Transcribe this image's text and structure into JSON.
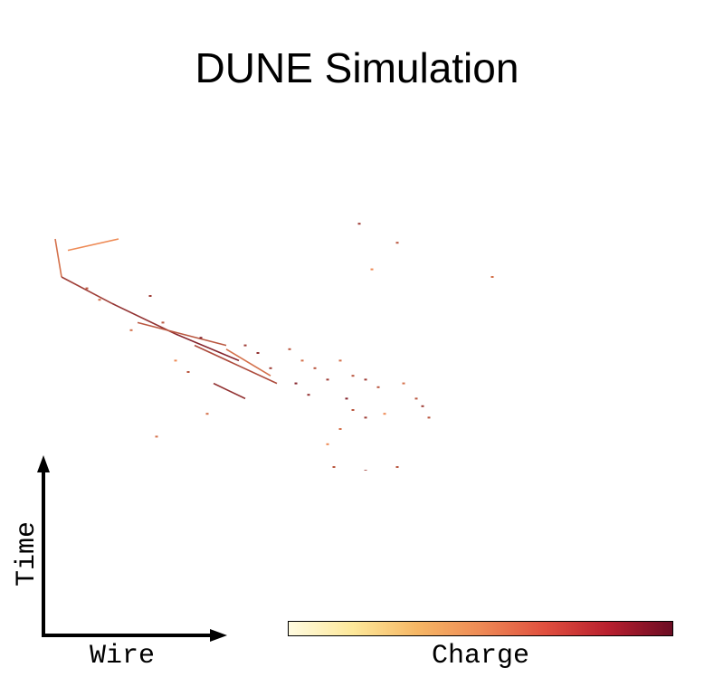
{
  "title": "DUNE Simulation",
  "axis_labels": {
    "x": "Wire",
    "y": "Time",
    "colorbar": "Charge"
  },
  "colormap": {
    "low": "#fffbe0",
    "mid": "#ee8a55",
    "high": "#6b0c23"
  },
  "chart_data": {
    "type": "heatmap",
    "title": "DUNE Simulation",
    "xlabel": "Wire",
    "ylabel": "Time",
    "colorbar_label": "Charge",
    "grid": false,
    "ticks": false,
    "tracks": [
      {
        "from": [
          0.05,
          0.23
        ],
        "to": [
          0.13,
          0.2
        ],
        "charge": 0.5
      },
      {
        "from": [
          0.03,
          0.2
        ],
        "to": [
          0.04,
          0.3
        ],
        "charge": 0.6
      },
      {
        "from": [
          0.04,
          0.3
        ],
        "to": [
          0.12,
          0.37
        ],
        "charge": 0.8
      },
      {
        "from": [
          0.12,
          0.37
        ],
        "to": [
          0.22,
          0.45
        ],
        "charge": 0.85
      },
      {
        "from": [
          0.16,
          0.42
        ],
        "to": [
          0.3,
          0.48
        ],
        "charge": 0.7
      },
      {
        "from": [
          0.22,
          0.45
        ],
        "to": [
          0.32,
          0.52
        ],
        "charge": 0.9
      },
      {
        "from": [
          0.25,
          0.48
        ],
        "to": [
          0.38,
          0.58
        ],
        "charge": 0.75
      },
      {
        "from": [
          0.3,
          0.49
        ],
        "to": [
          0.37,
          0.56
        ],
        "charge": 0.6
      },
      {
        "from": [
          0.28,
          0.58
        ],
        "to": [
          0.33,
          0.62
        ],
        "charge": 0.85
      }
    ],
    "hits": [
      [
        0.51,
        0.16,
        0.8
      ],
      [
        0.57,
        0.21,
        0.7
      ],
      [
        0.72,
        0.3,
        0.6
      ],
      [
        0.53,
        0.28,
        0.5
      ],
      [
        0.08,
        0.33,
        0.7
      ],
      [
        0.1,
        0.36,
        0.6
      ],
      [
        0.18,
        0.35,
        0.8
      ],
      [
        0.2,
        0.42,
        0.7
      ],
      [
        0.26,
        0.46,
        0.9
      ],
      [
        0.33,
        0.48,
        0.8
      ],
      [
        0.35,
        0.5,
        0.85
      ],
      [
        0.37,
        0.54,
        0.8
      ],
      [
        0.4,
        0.49,
        0.7
      ],
      [
        0.42,
        0.52,
        0.6
      ],
      [
        0.44,
        0.54,
        0.7
      ],
      [
        0.46,
        0.57,
        0.8
      ],
      [
        0.41,
        0.58,
        0.9
      ],
      [
        0.43,
        0.61,
        0.85
      ],
      [
        0.48,
        0.52,
        0.6
      ],
      [
        0.5,
        0.56,
        0.7
      ],
      [
        0.52,
        0.57,
        0.8
      ],
      [
        0.54,
        0.59,
        0.7
      ],
      [
        0.58,
        0.58,
        0.6
      ],
      [
        0.49,
        0.62,
        0.9
      ],
      [
        0.5,
        0.65,
        0.7
      ],
      [
        0.52,
        0.67,
        0.8
      ],
      [
        0.48,
        0.7,
        0.6
      ],
      [
        0.6,
        0.62,
        0.7
      ],
      [
        0.61,
        0.64,
        0.8
      ],
      [
        0.62,
        0.67,
        0.7
      ],
      [
        0.55,
        0.66,
        0.5
      ],
      [
        0.19,
        0.72,
        0.6
      ],
      [
        0.24,
        0.55,
        0.7
      ],
      [
        0.15,
        0.44,
        0.6
      ],
      [
        0.47,
        0.8,
        0.7
      ],
      [
        0.52,
        0.81,
        0.8
      ],
      [
        0.57,
        0.8,
        0.7
      ],
      [
        0.46,
        0.74,
        0.5
      ],
      [
        0.27,
        0.66,
        0.6
      ],
      [
        0.22,
        0.52,
        0.5
      ]
    ]
  }
}
